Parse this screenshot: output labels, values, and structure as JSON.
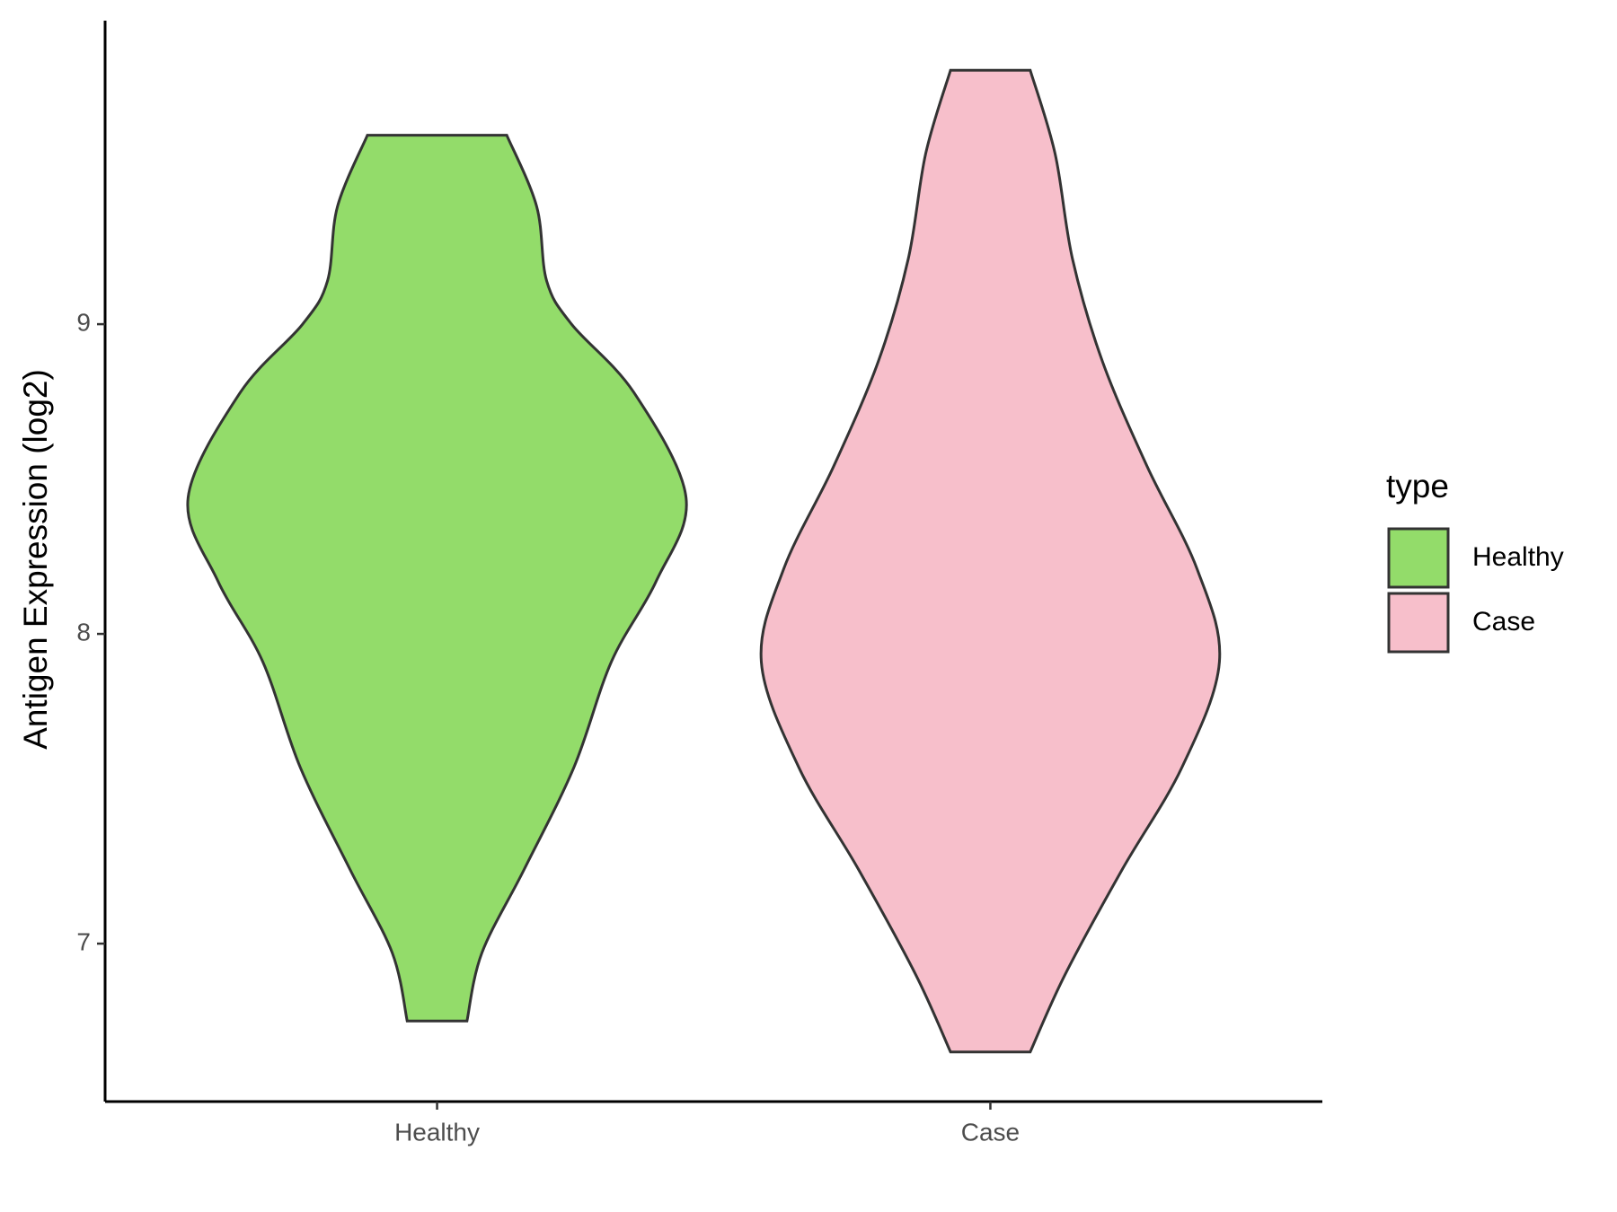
{
  "chart_data": {
    "type": "violin",
    "y_label": "Antigen Expression (log2)",
    "categories": [
      "Healthy",
      "Case"
    ],
    "legend_title": "type",
    "legend_position": "right",
    "ylim": [
      6.49,
      9.98
    ],
    "yticks": [
      7,
      8,
      9
    ],
    "grid": false,
    "series": [
      {
        "name": "Healthy",
        "color": "#93dc6a",
        "y": [
          9.61,
          9.38,
          9.14,
          9.0,
          8.78,
          8.44,
          8.17,
          7.91,
          7.57,
          7.24,
          6.97,
          6.75
        ],
        "density": [
          0.28,
          0.4,
          0.44,
          0.54,
          0.79,
          1.0,
          0.88,
          0.7,
          0.55,
          0.35,
          0.18,
          0.12
        ]
      },
      {
        "name": "Case",
        "color": "#f7bfcb",
        "y": [
          9.82,
          9.55,
          9.21,
          8.88,
          8.54,
          8.21,
          7.91,
          7.57,
          7.24,
          6.9,
          6.65
        ],
        "density": [
          0.16,
          0.26,
          0.33,
          0.45,
          0.63,
          0.83,
          0.92,
          0.77,
          0.53,
          0.3,
          0.16
        ]
      }
    ]
  }
}
